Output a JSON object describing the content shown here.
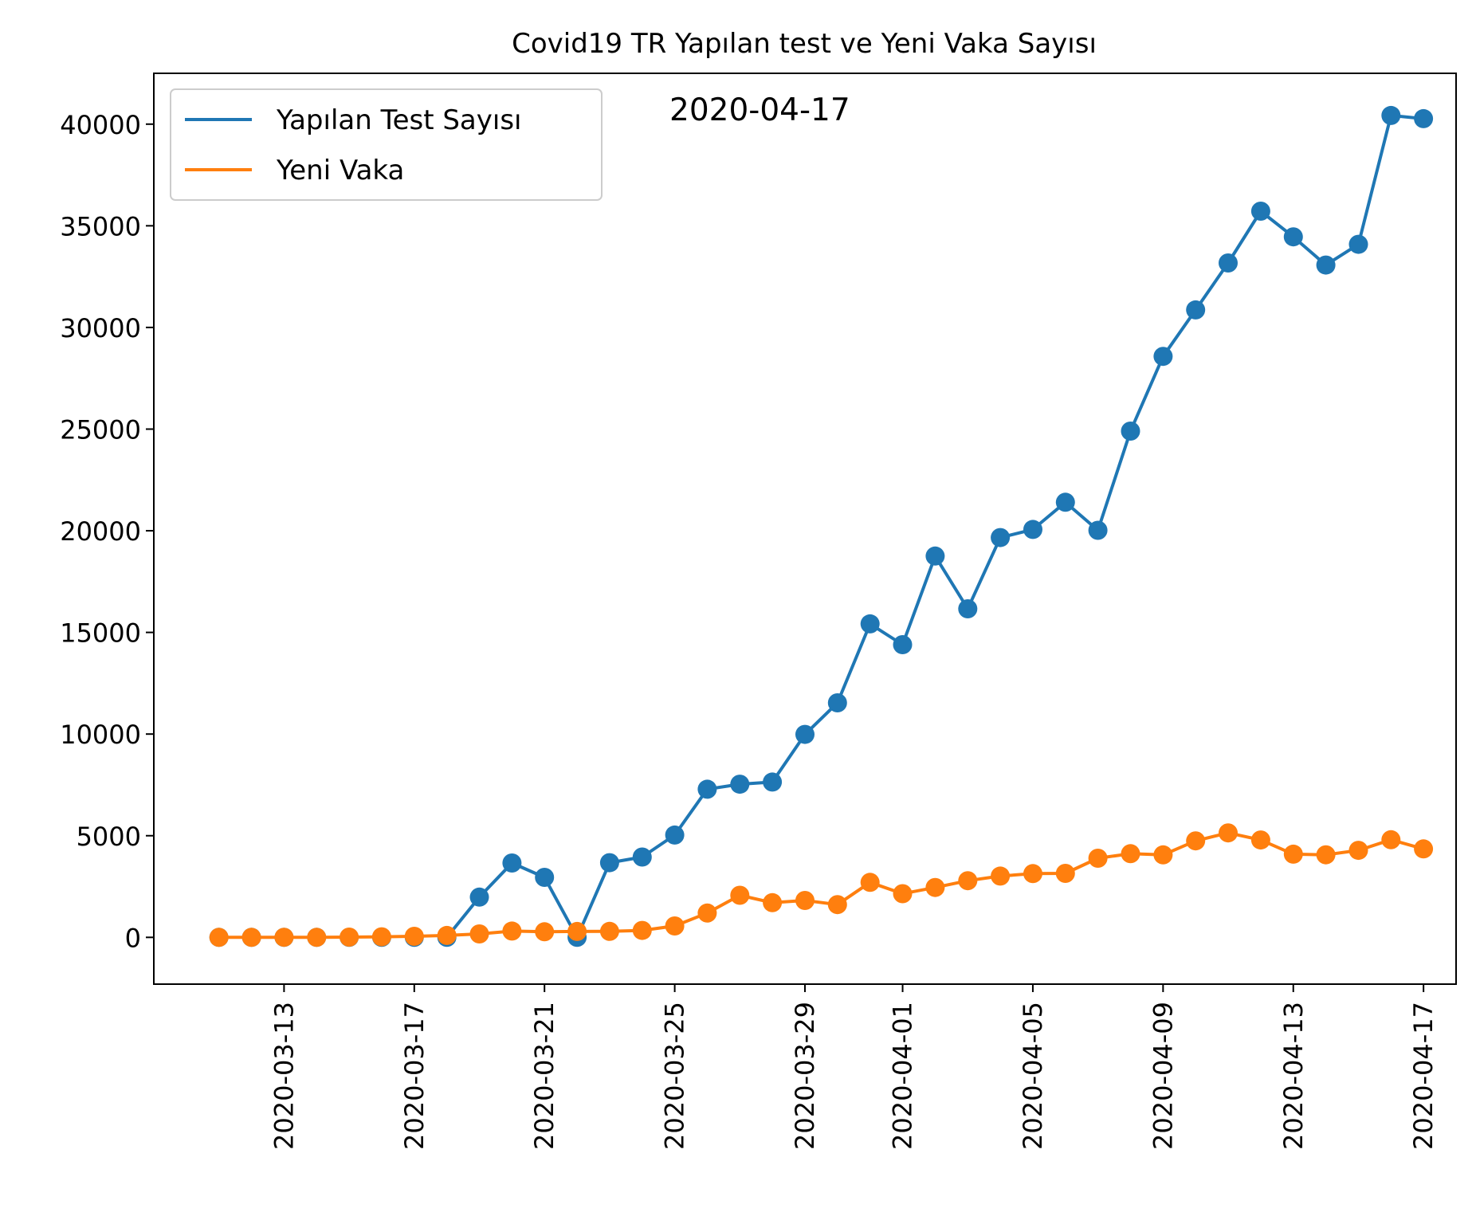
{
  "chart_data": {
    "type": "line",
    "title": "Covid19 TR Yapılan test ve Yeni Vaka Sayısı",
    "annotation": "2020-04-17",
    "xlabel": "",
    "ylabel": "",
    "ylim": [
      -2300,
      42500
    ],
    "xlim": [
      "2020-03-09",
      "2020-04-18"
    ],
    "grid": false,
    "legend_position": "top-left",
    "yticks": [
      0,
      5000,
      10000,
      15000,
      20000,
      25000,
      30000,
      35000,
      40000
    ],
    "xticks": [
      "2020-03-13",
      "2020-03-17",
      "2020-03-21",
      "2020-03-25",
      "2020-03-29",
      "2020-04-01",
      "2020-04-05",
      "2020-04-09",
      "2020-04-13",
      "2020-04-17"
    ],
    "x": [
      "2020-03-11",
      "2020-03-12",
      "2020-03-13",
      "2020-03-14",
      "2020-03-15",
      "2020-03-16",
      "2020-03-17",
      "2020-03-18",
      "2020-03-19",
      "2020-03-20",
      "2020-03-21",
      "2020-03-22",
      "2020-03-23",
      "2020-03-24",
      "2020-03-25",
      "2020-03-26",
      "2020-03-27",
      "2020-03-28",
      "2020-03-29",
      "2020-03-30",
      "2020-03-31",
      "2020-04-01",
      "2020-04-02",
      "2020-04-03",
      "2020-04-04",
      "2020-04-05",
      "2020-04-06",
      "2020-04-07",
      "2020-04-08",
      "2020-04-09",
      "2020-04-10",
      "2020-04-11",
      "2020-04-12",
      "2020-04-13",
      "2020-04-14",
      "2020-04-15",
      "2020-04-16",
      "2020-04-17"
    ],
    "series": [
      {
        "name": "Yapılan Test Sayısı",
        "color": "#1f77b4",
        "x_start": 7,
        "values": [
          0,
          0,
          0,
          0,
          0,
          0,
          0,
          0,
          1981,
          3656,
          2952,
          0,
          3672,
          3952,
          5035,
          7286,
          7533,
          7641,
          9982,
          11535,
          15422,
          14396,
          18757,
          16160,
          19664,
          20065,
          21400,
          20023,
          24900,
          28578,
          30864,
          33170,
          35720,
          34456,
          33070,
          34090,
          40427,
          40270
        ]
      },
      {
        "name": "Yeni Vaka",
        "color": "#ff7f0e",
        "values": [
          1,
          0,
          4,
          1,
          12,
          29,
          51,
          93,
          168,
          311,
          277,
          289,
          293,
          343,
          561,
          1196,
          2069,
          1704,
          1815,
          1610,
          2704,
          2148,
          2456,
          2786,
          3013,
          3135,
          3148,
          3892,
          4117,
          4056,
          4747,
          5138,
          4789,
          4093,
          4062,
          4281,
          4801,
          4353
        ]
      }
    ]
  }
}
